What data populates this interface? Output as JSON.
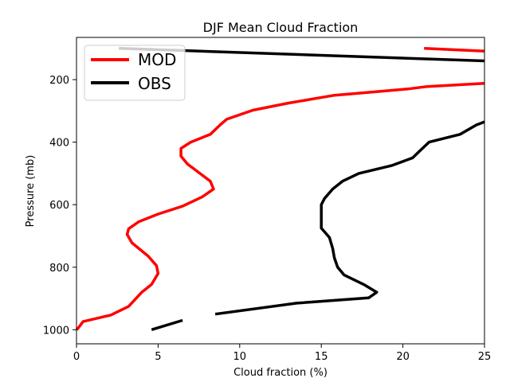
{
  "chart_data": {
    "type": "line",
    "title": "DJF Mean Cloud Fraction",
    "xlabel": "Cloud fraction (%)",
    "ylabel": "Pressure (mb)",
    "xlim": [
      0,
      25
    ],
    "ylim": [
      1045,
      65
    ],
    "y_inverted": true,
    "xticks": [
      0,
      5,
      10,
      15,
      20,
      25
    ],
    "yticks": [
      200,
      400,
      600,
      800,
      1000
    ],
    "grid": false,
    "legend": {
      "position": "top-left"
    },
    "series": [
      {
        "name": "MOD",
        "color": "#ff0000",
        "points": [
          [
            25,
            109
          ],
          [
            21.3,
            100
          ],
          [
            25,
            212
          ],
          [
            21.5,
            222
          ],
          [
            20.3,
            230
          ],
          [
            18.5,
            238
          ],
          [
            15.8,
            250
          ],
          [
            13,
            275
          ],
          [
            10.8,
            298
          ],
          [
            9.2,
            327
          ],
          [
            8.8,
            345
          ],
          [
            8.2,
            375
          ],
          [
            7,
            400
          ],
          [
            6.4,
            420
          ],
          [
            6.4,
            445
          ],
          [
            6.8,
            470
          ],
          [
            8.2,
            525
          ],
          [
            8.4,
            550
          ],
          [
            7.7,
            575
          ],
          [
            6.5,
            605
          ],
          [
            5,
            630
          ],
          [
            3.8,
            655
          ],
          [
            3.2,
            677
          ],
          [
            3.1,
            695
          ],
          [
            3.4,
            722
          ],
          [
            4.4,
            765
          ],
          [
            4.9,
            795
          ],
          [
            5,
            820
          ],
          [
            4.6,
            855
          ],
          [
            4,
            880
          ],
          [
            3.2,
            925
          ],
          [
            2.1,
            953
          ],
          [
            0.4,
            974
          ],
          [
            0.1,
            995
          ],
          [
            0,
            1000
          ]
        ]
      },
      {
        "name": "OBS",
        "color": "#000000",
        "points": [
          [
            2.6,
            100
          ],
          [
            25,
            140
          ],
          [
            25,
            335
          ],
          [
            24.5,
            345
          ],
          [
            23.5,
            375
          ],
          [
            21.6,
            400
          ],
          [
            21.1,
            425
          ],
          [
            20.6,
            450
          ],
          [
            19.3,
            475
          ],
          [
            17.3,
            500
          ],
          [
            16.3,
            525
          ],
          [
            15.7,
            550
          ],
          [
            15.2,
            580
          ],
          [
            15,
            600
          ],
          [
            15,
            625
          ],
          [
            15,
            675
          ],
          [
            15.5,
            705
          ],
          [
            15.7,
            740
          ],
          [
            15.8,
            770
          ],
          [
            16,
            800
          ],
          [
            16.4,
            825
          ],
          [
            17.6,
            855
          ],
          [
            18.4,
            880
          ],
          [
            17.9,
            898
          ],
          [
            13.5,
            915
          ],
          [
            8.5,
            950
          ],
          [
            6.5,
            970
          ],
          [
            4.6,
            1000
          ]
        ],
        "segments": [
          2,
          26
        ]
      }
    ]
  }
}
